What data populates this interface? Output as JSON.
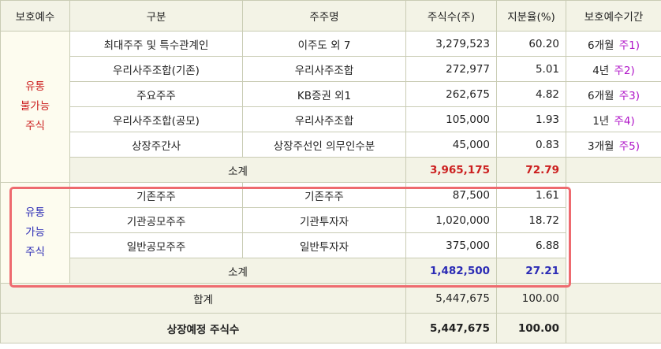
{
  "headers": [
    "보호예수",
    "구분",
    "주주명",
    "주식수(주)",
    "지분율(%)",
    "보호예수기간"
  ],
  "non_tradable": {
    "label": [
      "유통",
      "불가능",
      "주식"
    ],
    "rows": [
      {
        "category": "최대주주 및 특수관계인",
        "holder": "이주도 외 7",
        "shares": "3,279,523",
        "ratio": "60.20",
        "period": "6개월",
        "note": "주1)"
      },
      {
        "category": "우리사주조합(기존)",
        "holder": "우리사주조합",
        "shares": "272,977",
        "ratio": "5.01",
        "period": "4년",
        "note": "주2)"
      },
      {
        "category": "주요주주",
        "holder": "KB증권 외1",
        "shares": "262,675",
        "ratio": "4.82",
        "period": "6개월",
        "note": "주3)"
      },
      {
        "category": "우리사주조합(공모)",
        "holder": "우리사주조합",
        "shares": "105,000",
        "ratio": "1.93",
        "period": "1년",
        "note": "주4)"
      },
      {
        "category": "상장주간사",
        "holder": "상장주선인 의무인수분",
        "shares": "45,000",
        "ratio": "0.83",
        "period": "3개월",
        "note": "주5)"
      }
    ],
    "subtotal": {
      "label": "소계",
      "shares": "3,965,175",
      "ratio": "72.79"
    }
  },
  "tradable": {
    "label": [
      "유통",
      "가능",
      "주식"
    ],
    "rows": [
      {
        "category": "기존주주",
        "holder": "기존주주",
        "shares": "87,500",
        "ratio": "1.61"
      },
      {
        "category": "기관공모주주",
        "holder": "기관투자자",
        "shares": "1,020,000",
        "ratio": "18.72"
      },
      {
        "category": "일반공모주주",
        "holder": "일반투자자",
        "shares": "375,000",
        "ratio": "6.88"
      }
    ],
    "subtotal": {
      "label": "소계",
      "shares": "1,482,500",
      "ratio": "27.21"
    }
  },
  "total": {
    "label": "합계",
    "shares": "5,447,675",
    "ratio": "100.00"
  },
  "listing": {
    "label": "상장예정 주식수",
    "shares": "5,447,675",
    "ratio": "100.00"
  },
  "colors": {
    "red": "#cc1f1f",
    "blue": "#2b2bb5",
    "note": "#b015c8",
    "highlight_border": "#ee6a6f",
    "header_bg": "#f3f3e6"
  }
}
